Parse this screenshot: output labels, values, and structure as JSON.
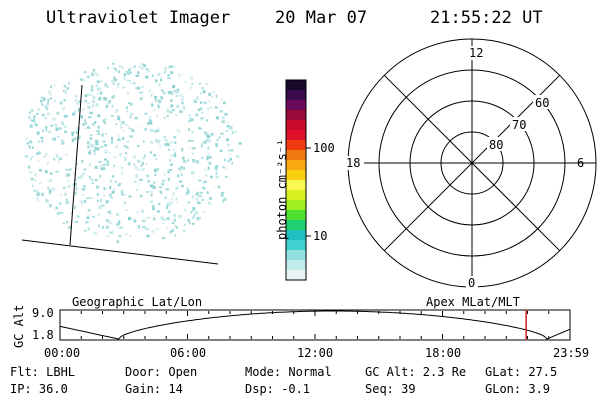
{
  "header": {
    "title": "Ultraviolet Imager",
    "date": "20 Mar 07",
    "time": "21:55:22 UT"
  },
  "colorbar": {
    "unit_label": "photon cm⁻²s⁻¹",
    "ticks": [
      "100",
      "10"
    ],
    "colors": [
      "#1a0a2a",
      "#3a0a4a",
      "#6a0a5a",
      "#9a0a3a",
      "#c80a2a",
      "#e0102a",
      "#f03a10",
      "#f07a10",
      "#f8a810",
      "#f8d010",
      "#f8f850",
      "#d8f020",
      "#a0f020",
      "#50e030",
      "#20d070",
      "#20c0c0",
      "#40d0d0",
      "#90e0e0",
      "#c0ecec",
      "#e8f4f4"
    ]
  },
  "polar_plot": {
    "mlt_labels": {
      "top": "12",
      "left": "18",
      "right": "6",
      "bottom": "0"
    },
    "lat_labels": [
      "60",
      "70",
      "80"
    ]
  },
  "timeline": {
    "y_axis_label": "GC Alt",
    "y_ticks": [
      "9.0",
      "1.8"
    ],
    "left_title": "Geographic Lat/Lon",
    "right_title": "Apex MLat/MLT",
    "x_ticks": [
      "00:00",
      "06:00",
      "12:00",
      "18:00",
      "23:59"
    ],
    "current_time_fraction": 0.914,
    "marker_color": "#cc2222"
  },
  "status": {
    "flt": "Flt: LBHL",
    "ip": "IP: 36.0",
    "door": "Door: Open",
    "gain": "Gain: 14",
    "mode": "Mode: Normal",
    "dsp": "Dsp:   -0.1",
    "gc_alt": "GC Alt: 2.3 Re",
    "seq": "Seq: 39",
    "glat": "GLat:  27.5",
    "glon": "GLon:   3.9"
  }
}
